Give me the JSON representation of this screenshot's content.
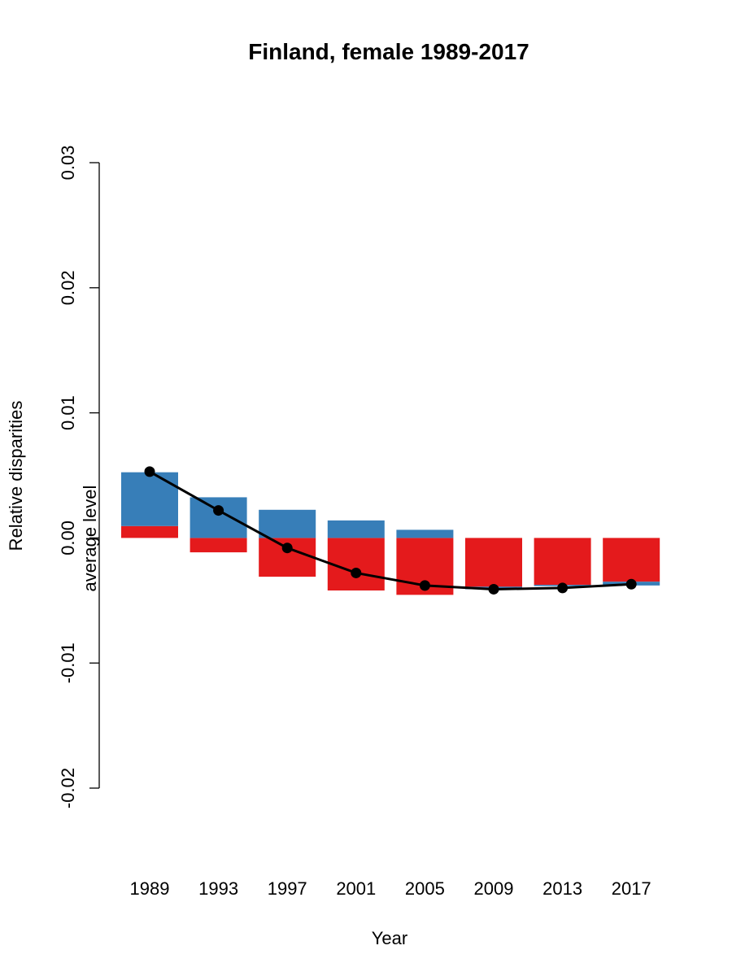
{
  "chart_data": {
    "type": "bar",
    "title": "Finland, female 1989-2017",
    "xlabel": "Year",
    "ylabel": "Relative disparities",
    "annotation": "average level",
    "ylim": [
      -0.02,
      0.03
    ],
    "yticks": [
      -0.02,
      -0.01,
      0.0,
      0.01,
      0.02,
      0.03
    ],
    "ytick_labels": [
      "-0.02",
      "-0.01",
      "0.00",
      "0.01",
      "0.02",
      "0.03"
    ],
    "categories": [
      "1989",
      "1993",
      "1997",
      "2001",
      "2005",
      "2009",
      "2013",
      "2017"
    ],
    "series": [
      {
        "name": "red component",
        "color": "#E41A1C",
        "segments": [
          [
            0.0,
            0.00095
          ],
          [
            0.0,
            -0.00115
          ],
          [
            0.0,
            -0.0031
          ],
          [
            0.0,
            -0.0042
          ],
          [
            0.0,
            -0.00455
          ],
          [
            0.0,
            -0.0039
          ],
          [
            0.0,
            -0.00375
          ],
          [
            0.0,
            -0.0035
          ]
        ]
      },
      {
        "name": "blue component",
        "color": "#377EB8",
        "segments": [
          [
            0.00095,
            0.00525
          ],
          [
            0.0,
            0.00325
          ],
          [
            0.0,
            0.00225
          ],
          [
            0.0,
            0.0014
          ],
          [
            0.0,
            0.00065
          ],
          [
            -0.0039,
            -0.0041
          ],
          [
            -0.00375,
            -0.00385
          ],
          [
            -0.0035,
            -0.0038
          ]
        ]
      }
    ],
    "line": {
      "name": "average level",
      "color": "#000000",
      "values": [
        0.0053,
        0.0022,
        -0.0008,
        -0.0028,
        -0.0038,
        -0.0041,
        -0.004,
        -0.0037
      ]
    }
  }
}
